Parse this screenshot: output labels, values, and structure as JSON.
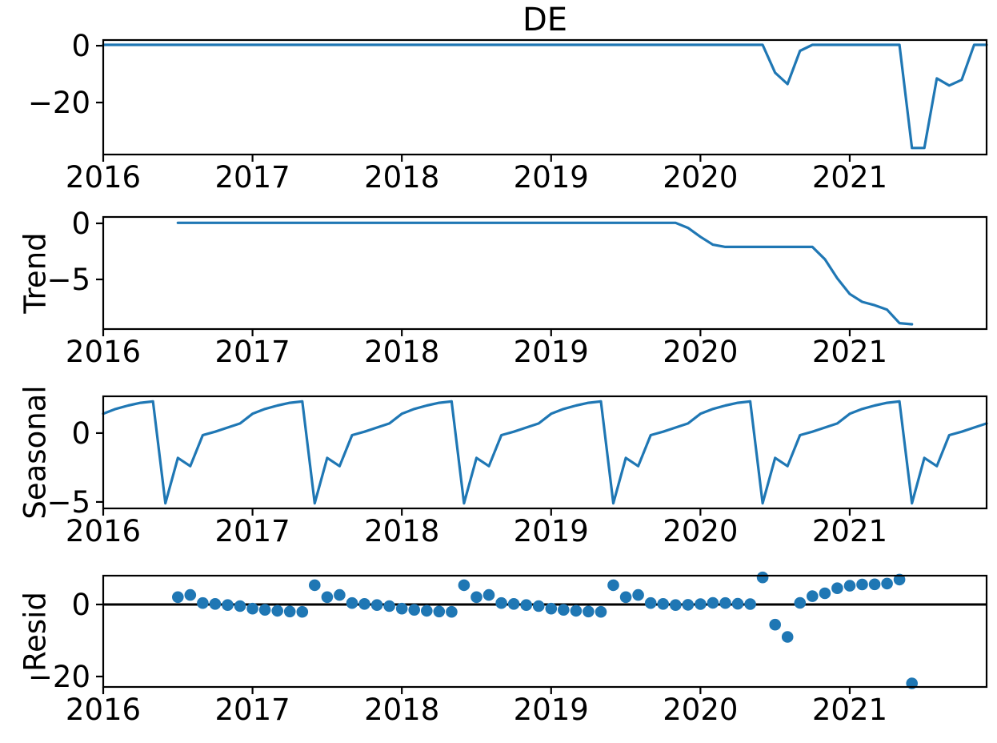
{
  "title": "DE",
  "colors": {
    "series": "#1f77b4",
    "zero_line": "#000000",
    "spine": "#000000",
    "text": "#000000",
    "background": "#ffffff"
  },
  "chart_data": [
    {
      "type": "line",
      "title": "DE",
      "ylabel": "",
      "x0": 2016.0,
      "x_step": 0.0833333,
      "xlim": [
        2016.0,
        2021.9167
      ],
      "ylim": [
        -38.3,
        2.0
      ],
      "xticks": [
        2016,
        2017,
        2018,
        2019,
        2020,
        2021
      ],
      "xtick_labels": [
        "2016",
        "2017",
        "2018",
        "2019",
        "2020",
        "2021"
      ],
      "yticks": [
        0,
        -20
      ],
      "ytick_labels": [
        "0",
        "−20"
      ],
      "zero_line": false,
      "values": [
        0.3,
        0.3,
        0.3,
        0.3,
        0.3,
        0.3,
        0.3,
        0.3,
        0.3,
        0.3,
        0.3,
        0.3,
        0.3,
        0.3,
        0.3,
        0.3,
        0.3,
        0.3,
        0.3,
        0.3,
        0.3,
        0.3,
        0.3,
        0.3,
        0.3,
        0.3,
        0.3,
        0.3,
        0.3,
        0.3,
        0.3,
        0.3,
        0.3,
        0.3,
        0.3,
        0.3,
        0.3,
        0.3,
        0.3,
        0.3,
        0.3,
        0.3,
        0.3,
        0.3,
        0.3,
        0.3,
        0.3,
        0.3,
        0.3,
        0.3,
        0.3,
        0.3,
        0.3,
        0.3,
        -9.5,
        -13.5,
        -1.8,
        0.3,
        0.3,
        0.3,
        0.3,
        0.3,
        0.3,
        0.3,
        0.3,
        -36,
        -36,
        -11.5,
        -14,
        -12,
        0.3,
        0.3
      ]
    },
    {
      "type": "line",
      "title": "",
      "ylabel": "Trend",
      "x0": 2016.5,
      "x_step": 0.0833333,
      "xlim": [
        2016.0,
        2021.9167
      ],
      "ylim": [
        -9.43,
        0.57
      ],
      "xticks": [
        2016,
        2017,
        2018,
        2019,
        2020,
        2021
      ],
      "xtick_labels": [
        "2016",
        "2017",
        "2018",
        "2019",
        "2020",
        "2021"
      ],
      "yticks": [
        0,
        -5
      ],
      "ytick_labels": [
        "0",
        "−5"
      ],
      "zero_line": false,
      "values": [
        0.05,
        0.05,
        0.05,
        0.05,
        0.05,
        0.05,
        0.05,
        0.05,
        0.05,
        0.05,
        0.05,
        0.05,
        0.05,
        0.05,
        0.05,
        0.05,
        0.05,
        0.05,
        0.05,
        0.05,
        0.05,
        0.05,
        0.05,
        0.05,
        0.05,
        0.05,
        0.05,
        0.05,
        0.05,
        0.05,
        0.05,
        0.05,
        0.05,
        0.05,
        0.05,
        0.05,
        0.05,
        0.05,
        0.05,
        0.05,
        0.05,
        -0.4,
        -1.2,
        -1.9,
        -2.1,
        -2.1,
        -2.1,
        -2.1,
        -2.1,
        -2.1,
        -2.1,
        -2.1,
        -3.2,
        -4.9,
        -6.3,
        -7.0,
        -7.3,
        -7.7,
        -8.9,
        -9.0
      ]
    },
    {
      "type": "line",
      "title": "",
      "ylabel": "Seasonal",
      "x0": 2016.0,
      "x_step": 0.0833333,
      "xlim": [
        2016.0,
        2021.9167
      ],
      "ylim": [
        -5.47,
        2.67
      ],
      "xticks": [
        2016,
        2017,
        2018,
        2019,
        2020,
        2021
      ],
      "xtick_labels": [
        "2016",
        "2017",
        "2018",
        "2019",
        "2020",
        "2021"
      ],
      "yticks": [
        0,
        -5
      ],
      "ytick_labels": [
        "0",
        "−5"
      ],
      "zero_line": false,
      "values": [
        1.4,
        1.75,
        2.0,
        2.2,
        2.3,
        -5.1,
        -1.8,
        -2.4,
        -0.15,
        0.1,
        0.4,
        0.7,
        1.4,
        1.75,
        2.0,
        2.2,
        2.3,
        -5.1,
        -1.8,
        -2.4,
        -0.15,
        0.1,
        0.4,
        0.7,
        1.4,
        1.75,
        2.0,
        2.2,
        2.3,
        -5.1,
        -1.8,
        -2.4,
        -0.15,
        0.1,
        0.4,
        0.7,
        1.4,
        1.75,
        2.0,
        2.2,
        2.3,
        -5.1,
        -1.8,
        -2.4,
        -0.15,
        0.1,
        0.4,
        0.7,
        1.4,
        1.75,
        2.0,
        2.2,
        2.3,
        -5.1,
        -1.8,
        -2.4,
        -0.15,
        0.1,
        0.4,
        0.7,
        1.4,
        1.75,
        2.0,
        2.2,
        2.3,
        -5.1,
        -1.8,
        -2.4,
        -0.15,
        0.1,
        0.4,
        0.7
      ]
    },
    {
      "type": "scatter",
      "title": "",
      "ylabel": "Resid",
      "x0": 2016.5,
      "x_step": 0.0833333,
      "xlim": [
        2016.0,
        2021.9167
      ],
      "ylim": [
        -22.9,
        8.0
      ],
      "xticks": [
        2016,
        2017,
        2018,
        2019,
        2020,
        2021
      ],
      "xtick_labels": [
        "2016",
        "2017",
        "2018",
        "2019",
        "2020",
        "2021"
      ],
      "yticks": [
        0,
        -20
      ],
      "ytick_labels": [
        "0",
        "−20"
      ],
      "zero_line": true,
      "values": [
        2.05,
        2.65,
        0.4,
        0.15,
        -0.15,
        -0.45,
        -1.15,
        -1.5,
        -1.75,
        -1.95,
        -2.05,
        5.35,
        2.05,
        2.65,
        0.4,
        0.15,
        -0.15,
        -0.45,
        -1.15,
        -1.5,
        -1.75,
        -1.95,
        -2.05,
        5.35,
        2.05,
        2.65,
        0.4,
        0.15,
        -0.15,
        -0.45,
        -1.15,
        -1.5,
        -1.75,
        -1.95,
        -2.05,
        5.35,
        2.05,
        2.65,
        0.4,
        0.15,
        -0.15,
        -0.1,
        0.1,
        0.45,
        0.4,
        0.2,
        0.1,
        7.5,
        -5.6,
        -9.0,
        0.45,
        2.3,
        3.1,
        4.5,
        5.2,
        5.55,
        5.6,
        5.8,
        6.9,
        -21.9
      ]
    }
  ]
}
